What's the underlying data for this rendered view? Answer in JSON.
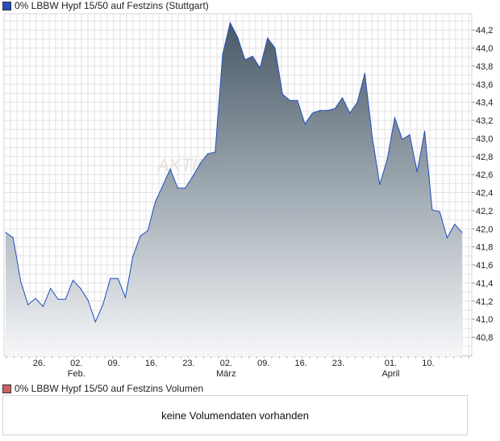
{
  "chart_data": {
    "type": "area",
    "title": "0% LBBW Hypf 15/50 auf Festzins (Stuttgart)",
    "series_color": "#1f4fc0",
    "values": [
      41.96,
      41.9,
      41.42,
      41.16,
      41.23,
      41.14,
      41.34,
      41.22,
      41.22,
      41.43,
      41.34,
      41.21,
      40.97,
      41.16,
      41.45,
      41.45,
      41.24,
      41.69,
      41.92,
      41.98,
      42.3,
      42.48,
      42.66,
      42.45,
      42.45,
      42.58,
      42.72,
      42.83,
      42.85,
      43.93,
      44.28,
      44.12,
      43.87,
      43.91,
      43.78,
      44.11,
      44.0,
      43.49,
      43.42,
      43.42,
      43.16,
      43.28,
      43.31,
      43.31,
      43.33,
      43.45,
      43.28,
      43.4,
      43.72,
      43.01,
      42.49,
      42.77,
      43.23,
      42.99,
      43.04,
      42.63,
      43.08,
      42.21,
      42.19,
      41.9,
      42.05,
      41.96
    ],
    "ylim": [
      40.59,
      44.38
    ],
    "yticks": [
      "40,8",
      "41,0",
      "41,2",
      "41,4",
      "41,6",
      "41,8",
      "42,0",
      "42,2",
      "42,4",
      "42,6",
      "42,8",
      "43,0",
      "43,2",
      "43,4",
      "43,6",
      "43,8",
      "44,0",
      "44,2"
    ],
    "ytick_values": [
      40.8,
      41.0,
      41.2,
      41.4,
      41.6,
      41.8,
      42.0,
      42.2,
      42.4,
      42.6,
      42.8,
      43.0,
      43.2,
      43.4,
      43.6,
      43.8,
      44.0,
      44.2
    ],
    "xticks": [
      {
        "label": "26.",
        "index": 5,
        "month": ""
      },
      {
        "label": "02.",
        "index": 10,
        "month": "Feb."
      },
      {
        "label": "09.",
        "index": 15,
        "month": ""
      },
      {
        "label": "16.",
        "index": 20,
        "month": ""
      },
      {
        "label": "23.",
        "index": 25,
        "month": ""
      },
      {
        "label": "02.",
        "index": 30,
        "month": "März"
      },
      {
        "label": "09.",
        "index": 35,
        "month": ""
      },
      {
        "label": "16.",
        "index": 40,
        "month": ""
      },
      {
        "label": "23.",
        "index": 45,
        "month": ""
      },
      {
        "label": "01.",
        "index": 52,
        "month": "April"
      },
      {
        "label": "10.",
        "index": 57,
        "month": ""
      }
    ],
    "watermark": "AKTIEN"
  },
  "volume": {
    "legend": "0% LBBW Hypf 15/50 auf Festzins Volumen",
    "legend_color": "#d06060",
    "message": "keine Volumendaten vorhanden"
  }
}
